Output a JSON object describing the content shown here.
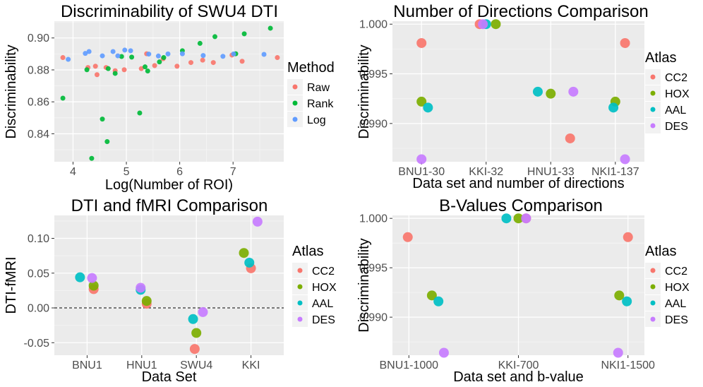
{
  "chart_data": [
    {
      "type": "scatter",
      "title": "Discriminability of SWU4 DTI",
      "xlabel": "Log(Number of ROI)",
      "ylabel": "Discriminability",
      "xlim": [
        3.65,
        7.95
      ],
      "ylim": [
        0.8225,
        0.9105
      ],
      "xticks": [
        4,
        5,
        6,
        7
      ],
      "xtick_labels": [
        "4",
        "5",
        "6",
        "7"
      ],
      "yticks": [
        0.84,
        0.86,
        0.88,
        0.9
      ],
      "ytick_labels": [
        "0.84",
        "0.86",
        "0.88",
        "0.90"
      ],
      "grid": true,
      "legend_title": "Method",
      "legend_position": "right",
      "point_size": 3.5,
      "series": [
        {
          "name": "Raw",
          "color": "#F8766D",
          "x": [
            3.81,
            4.28,
            4.42,
            4.45,
            4.62,
            4.79,
            4.96,
            5.28,
            5.38,
            5.53,
            5.69,
            5.95,
            6.21,
            6.43,
            6.63,
            6.98,
            7.17,
            7.83
          ],
          "y": [
            0.8877,
            0.8815,
            0.8823,
            0.877,
            0.8815,
            0.8795,
            0.8801,
            0.8808,
            0.8901,
            0.8827,
            0.887,
            0.8823,
            0.8846,
            0.8861,
            0.8846,
            0.8893,
            0.8854,
            0.8877
          ]
        },
        {
          "name": "Rank",
          "color": "#00BA38",
          "x": [
            3.81,
            4.26,
            4.35,
            4.55,
            4.64,
            4.66,
            4.79,
            4.91,
            5.1,
            5.25,
            5.35,
            5.4,
            5.62,
            5.7,
            6.05,
            6.38,
            6.66,
            7.05,
            7.21,
            7.7
          ],
          "y": [
            0.8623,
            0.8801,
            0.8246,
            0.8492,
            0.8351,
            0.8808,
            0.8778,
            0.8884,
            0.888,
            0.853,
            0.8819,
            0.8793,
            0.885,
            0.8877,
            0.892,
            0.8966,
            0.9008,
            0.8901,
            0.9026,
            0.9061
          ]
        },
        {
          "name": "Log",
          "color": "#619CFF",
          "x": [
            3.91,
            4.23,
            4.3,
            4.55,
            4.75,
            4.84,
            4.97,
            5.08,
            5.42,
            5.6,
            5.78,
            6.05,
            6.44,
            6.81,
            7.01,
            7.58
          ],
          "y": [
            0.8866,
            0.8903,
            0.8915,
            0.8888,
            0.8915,
            0.8888,
            0.8924,
            0.892,
            0.8899,
            0.8887,
            0.89,
            0.8901,
            0.889,
            0.8885,
            0.89,
            0.8897
          ]
        }
      ]
    },
    {
      "type": "scatter",
      "title": "Number of Directions Comparison",
      "xlabel": "Data set and number of directions",
      "ylabel": "Discriminability",
      "categories": [
        "BNU1-30",
        "KKI-32",
        "HNU1-33",
        "NKI1-137"
      ],
      "xlim": [
        0.55,
        4.45
      ],
      "ylim": [
        0.98615,
        1.0003
      ],
      "yticks": [
        0.99,
        0.995,
        1.0
      ],
      "ytick_labels": [
        "0.990",
        "0.995",
        "1.000"
      ],
      "grid": true,
      "legend_title": "Atlas",
      "legend_position": "right",
      "point_size": 7,
      "series": [
        {
          "name": "CC2",
          "color": "#F8766D",
          "x": [
            1.0,
            1.9,
            3.3,
            4.15
          ],
          "y": [
            0.9981,
            1.0,
            0.9885,
            0.9981
          ]
        },
        {
          "name": "HOX",
          "color": "#7CAE00",
          "x": [
            1.0,
            2.15,
            3.0,
            4.0
          ],
          "y": [
            0.9922,
            1.0,
            0.993,
            0.9922
          ]
        },
        {
          "name": "AAL",
          "color": "#00BFC4",
          "x": [
            1.1,
            2.0,
            2.8,
            3.97
          ],
          "y": [
            0.9916,
            1.0,
            0.9932,
            0.9916
          ]
        },
        {
          "name": "DES",
          "color": "#C77CFF",
          "x": [
            1.0,
            1.95,
            3.35,
            4.15
          ],
          "y": [
            0.9864,
            1.0,
            0.9932,
            0.9864
          ]
        }
      ]
    },
    {
      "type": "scatter",
      "title": "DTI and fMRI Comparison",
      "xlabel": "Data Set",
      "ylabel": "DTI-fMRI",
      "categories": [
        "BNU1",
        "HNU1",
        "SWU4",
        "KKI"
      ],
      "xlim": [
        0.4,
        4.6
      ],
      "ylim": [
        -0.068,
        0.133
      ],
      "yticks": [
        -0.05,
        0.0,
        0.05,
        0.1
      ],
      "ytick_labels": [
        "-0.05",
        "0.00",
        "0.05",
        "0.10"
      ],
      "grid": true,
      "reference_line": {
        "y": 0,
        "style": "dashed"
      },
      "legend_title": "Atlas",
      "legend_position": "right",
      "point_size": 7,
      "series": [
        {
          "name": "CC2",
          "color": "#F8766D",
          "x": [
            1.12,
            2.09,
            2.97,
            4.0
          ],
          "y": [
            0.027,
            0.006,
            -0.059,
            0.057
          ]
        },
        {
          "name": "HOX",
          "color": "#7CAE00",
          "x": [
            1.12,
            2.09,
            3.0,
            3.87
          ],
          "y": [
            0.032,
            0.01,
            -0.036,
            0.079
          ]
        },
        {
          "name": "AAL",
          "color": "#00BFC4",
          "x": [
            0.87,
            1.98,
            2.94,
            3.97
          ],
          "y": [
            0.044,
            0.026,
            -0.016,
            0.065
          ]
        },
        {
          "name": "DES",
          "color": "#C77CFF",
          "x": [
            1.09,
            1.98,
            3.12,
            4.12
          ],
          "y": [
            0.043,
            0.029,
            -0.006,
            0.124
          ]
        }
      ]
    },
    {
      "type": "scatter",
      "title": "B-Values Comparison",
      "xlabel": "Data set and b-value",
      "ylabel": "Discriminability",
      "categories": [
        "BNU1-1000",
        "KKI-700",
        "NKI1-1500"
      ],
      "xlim": [
        0.85,
        3.15
      ],
      "ylim": [
        0.98615,
        1.0003
      ],
      "yticks": [
        0.99,
        0.995,
        1.0
      ],
      "ytick_labels": [
        "0.990",
        "0.995",
        "1.000"
      ],
      "grid": true,
      "legend_title": "Atlas",
      "legend_position": "right",
      "point_size": 7,
      "series": [
        {
          "name": "CC2",
          "color": "#F8766D",
          "x": [
            0.99,
            2.07,
            3.0
          ],
          "y": [
            0.9981,
            1.0,
            0.9981
          ]
        },
        {
          "name": "HOX",
          "color": "#7CAE00",
          "x": [
            1.21,
            2.0,
            2.92
          ],
          "y": [
            0.9922,
            1.0,
            0.9922
          ]
        },
        {
          "name": "AAL",
          "color": "#00BFC4",
          "x": [
            1.27,
            1.89,
            2.99
          ],
          "y": [
            0.9916,
            1.0,
            0.9916
          ]
        },
        {
          "name": "DES",
          "color": "#C77CFF",
          "x": [
            1.32,
            2.07,
            2.91
          ],
          "y": [
            0.9864,
            1.0,
            0.9864
          ]
        }
      ]
    }
  ]
}
